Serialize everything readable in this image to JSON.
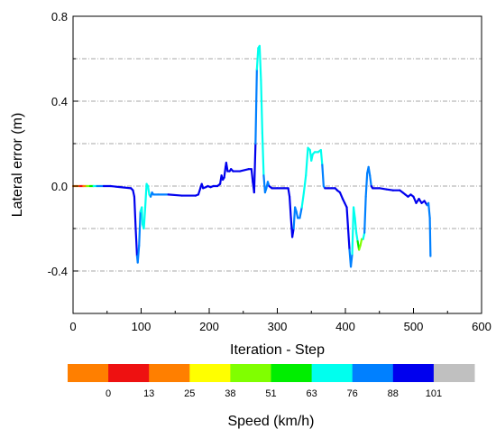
{
  "chart_data": {
    "type": "line",
    "title": "",
    "xlabel": "Iteration - Step",
    "ylabel": "Lateral error (m)",
    "xlim": [
      0,
      600
    ],
    "ylim": [
      -0.6,
      0.8
    ],
    "xticks": [
      0,
      100,
      200,
      300,
      400,
      500,
      600
    ],
    "yticks": [
      -0.4,
      0.0,
      0.4,
      0.8
    ],
    "ytick_labels": [
      "-0.4",
      "0.0",
      "0.4",
      "0.8"
    ],
    "grid": "horizontal dash-dot",
    "colorbar": {
      "title": "Speed (km/h)",
      "colors": [
        "#ff7f00",
        "#ee1111",
        "#ff7f00",
        "#ffff00",
        "#80ff00",
        "#00ee00",
        "#00ffee",
        "#0080ff",
        "#0000ee",
        "#c0c0c0"
      ],
      "tick_labels": [
        "0",
        "13",
        "25",
        "38",
        "51",
        "63",
        "76",
        "88",
        "101"
      ]
    },
    "series": [
      {
        "points": [
          [
            0,
            0.0,
            0
          ],
          [
            5,
            0.0,
            0
          ],
          [
            10,
            0.0,
            0
          ],
          [
            15,
            0.0,
            13
          ],
          [
            20,
            0.0,
            25
          ],
          [
            25,
            0.0,
            45
          ],
          [
            30,
            0.0,
            60
          ],
          [
            35,
            0.0,
            76
          ],
          [
            45,
            0.0,
            88
          ],
          [
            55,
            0.0,
            101
          ],
          [
            85,
            -0.01,
            101
          ],
          [
            88,
            -0.02,
            101
          ],
          [
            90,
            -0.05,
            101
          ],
          [
            92,
            -0.2,
            101
          ],
          [
            94,
            -0.33,
            101
          ],
          [
            95,
            -0.36,
            90
          ],
          [
            97,
            -0.28,
            88
          ],
          [
            99,
            -0.12,
            88
          ],
          [
            101,
            -0.1,
            80
          ],
          [
            102,
            -0.18,
            76
          ],
          [
            104,
            -0.2,
            76
          ],
          [
            106,
            -0.1,
            76
          ],
          [
            108,
            0.01,
            76
          ],
          [
            110,
            0.0,
            76
          ],
          [
            112,
            -0.04,
            76
          ],
          [
            114,
            -0.05,
            76
          ],
          [
            116,
            -0.03,
            88
          ],
          [
            118,
            -0.04,
            88
          ],
          [
            125,
            -0.04,
            88
          ],
          [
            140,
            -0.04,
            88
          ],
          [
            160,
            -0.045,
            101
          ],
          [
            180,
            -0.045,
            101
          ],
          [
            184,
            -0.04,
            101
          ],
          [
            187,
            -0.01,
            101
          ],
          [
            189,
            0.01,
            101
          ],
          [
            191,
            -0.01,
            101
          ],
          [
            195,
            -0.005,
            101
          ],
          [
            198,
            0.0,
            101
          ],
          [
            202,
            -0.005,
            101
          ],
          [
            206,
            0.0,
            101
          ],
          [
            212,
            0.0,
            101
          ],
          [
            216,
            0.01,
            101
          ],
          [
            218,
            0.05,
            101
          ],
          [
            220,
            0.03,
            101
          ],
          [
            222,
            0.04,
            101
          ],
          [
            224,
            0.09,
            101
          ],
          [
            225,
            0.11,
            101
          ],
          [
            227,
            0.07,
            101
          ],
          [
            230,
            0.07,
            101
          ],
          [
            232,
            0.08,
            101
          ],
          [
            235,
            0.07,
            101
          ],
          [
            245,
            0.07,
            101
          ],
          [
            258,
            0.08,
            101
          ],
          [
            262,
            0.08,
            101
          ],
          [
            264,
            0.02,
            101
          ],
          [
            266,
            -0.03,
            101
          ],
          [
            268,
            0.2,
            101
          ],
          [
            270,
            0.55,
            88
          ],
          [
            272,
            0.65,
            76
          ],
          [
            274,
            0.66,
            76
          ],
          [
            276,
            0.5,
            76
          ],
          [
            278,
            0.25,
            76
          ],
          [
            280,
            0.05,
            76
          ],
          [
            282,
            -0.03,
            88
          ],
          [
            284,
            -0.01,
            88
          ],
          [
            286,
            0.02,
            88
          ],
          [
            288,
            0.0,
            88
          ],
          [
            292,
            -0.01,
            101
          ],
          [
            300,
            -0.01,
            101
          ],
          [
            310,
            -0.01,
            101
          ],
          [
            316,
            -0.01,
            101
          ],
          [
            318,
            -0.05,
            101
          ],
          [
            320,
            -0.15,
            101
          ],
          [
            322,
            -0.24,
            101
          ],
          [
            324,
            -0.2,
            101
          ],
          [
            326,
            -0.1,
            88
          ],
          [
            328,
            -0.12,
            88
          ],
          [
            330,
            -0.15,
            88
          ],
          [
            333,
            -0.15,
            88
          ],
          [
            336,
            -0.1,
            88
          ],
          [
            339,
            -0.03,
            76
          ],
          [
            342,
            0.05,
            76
          ],
          [
            345,
            0.18,
            76
          ],
          [
            348,
            0.17,
            76
          ],
          [
            350,
            0.12,
            76
          ],
          [
            352,
            0.15,
            76
          ],
          [
            355,
            0.16,
            76
          ],
          [
            360,
            0.16,
            76
          ],
          [
            364,
            0.17,
            76
          ],
          [
            366,
            0.1,
            76
          ],
          [
            368,
            0.0,
            88
          ],
          [
            370,
            -0.01,
            88
          ],
          [
            375,
            -0.01,
            101
          ],
          [
            380,
            -0.01,
            101
          ],
          [
            385,
            -0.01,
            101
          ],
          [
            388,
            -0.02,
            101
          ],
          [
            392,
            -0.03,
            101
          ],
          [
            396,
            -0.06,
            101
          ],
          [
            399,
            -0.08,
            101
          ],
          [
            402,
            -0.1,
            101
          ],
          [
            404,
            -0.2,
            101
          ],
          [
            406,
            -0.3,
            101
          ],
          [
            408,
            -0.38,
            88
          ],
          [
            410,
            -0.32,
            88
          ],
          [
            412,
            -0.1,
            76
          ],
          [
            414,
            -0.15,
            76
          ],
          [
            416,
            -0.22,
            76
          ],
          [
            418,
            -0.26,
            76
          ],
          [
            420,
            -0.3,
            63
          ],
          [
            422,
            -0.28,
            51
          ],
          [
            424,
            -0.25,
            51
          ],
          [
            426,
            -0.25,
            51
          ],
          [
            428,
            -0.22,
            76
          ],
          [
            430,
            -0.05,
            88
          ],
          [
            432,
            0.06,
            88
          ],
          [
            434,
            0.09,
            88
          ],
          [
            436,
            0.05,
            88
          ],
          [
            438,
            0.0,
            88
          ],
          [
            440,
            -0.01,
            101
          ],
          [
            450,
            -0.01,
            101
          ],
          [
            460,
            -0.015,
            101
          ],
          [
            470,
            -0.02,
            101
          ],
          [
            480,
            -0.02,
            101
          ],
          [
            484,
            -0.03,
            101
          ],
          [
            488,
            -0.04,
            101
          ],
          [
            492,
            -0.05,
            101
          ],
          [
            496,
            -0.04,
            101
          ],
          [
            500,
            -0.05,
            101
          ],
          [
            504,
            -0.08,
            101
          ],
          [
            508,
            -0.06,
            101
          ],
          [
            512,
            -0.08,
            101
          ],
          [
            516,
            -0.07,
            101
          ],
          [
            520,
            -0.09,
            101
          ],
          [
            522,
            -0.08,
            88
          ],
          [
            524,
            -0.15,
            88
          ],
          [
            525,
            -0.33,
            88
          ]
        ]
      }
    ]
  }
}
